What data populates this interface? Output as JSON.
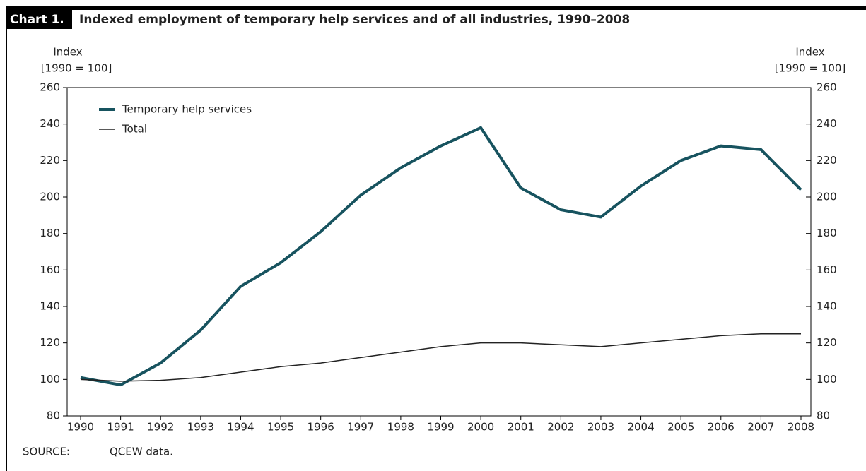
{
  "chart_data": {
    "type": "line",
    "label": "Chart 1.",
    "title": "Indexed employment of temporary help services and of all industries, 1990–2008",
    "y_label": [
      "Index",
      "[1990 = 100]"
    ],
    "y2_label": [
      "Index",
      "[1990 = 100]"
    ],
    "categories": [
      "1990",
      "1991",
      "1992",
      "1993",
      "1994",
      "1995",
      "1996",
      "1997",
      "1998",
      "1999",
      "2000",
      "2001",
      "2002",
      "2003",
      "2004",
      "2005",
      "2006",
      "2007",
      "2008"
    ],
    "series": [
      {
        "name": "Temporary help services",
        "color": "#17535f",
        "width": 4,
        "values": [
          101,
          97,
          109,
          127,
          151,
          164,
          181,
          201,
          216,
          228,
          238,
          205,
          193,
          189,
          206,
          220,
          228,
          226,
          204
        ]
      },
      {
        "name": "Total",
        "color": "#222222",
        "width": 1.5,
        "values": [
          100,
          99,
          99.5,
          101,
          104,
          107,
          109,
          112,
          115,
          118,
          120,
          120,
          119,
          118,
          120,
          122,
          124,
          125,
          125
        ]
      }
    ],
    "ylim": [
      80,
      260
    ],
    "yticks": [
      80,
      100,
      120,
      140,
      160,
      180,
      200,
      220,
      240,
      260
    ],
    "y2lim": [
      80,
      260
    ],
    "y2ticks": [
      80,
      100,
      120,
      140,
      160,
      180,
      200,
      220,
      240,
      260
    ],
    "legend": "upper left",
    "source": {
      "label": "SOURCE:",
      "text": "QCEW data."
    }
  }
}
